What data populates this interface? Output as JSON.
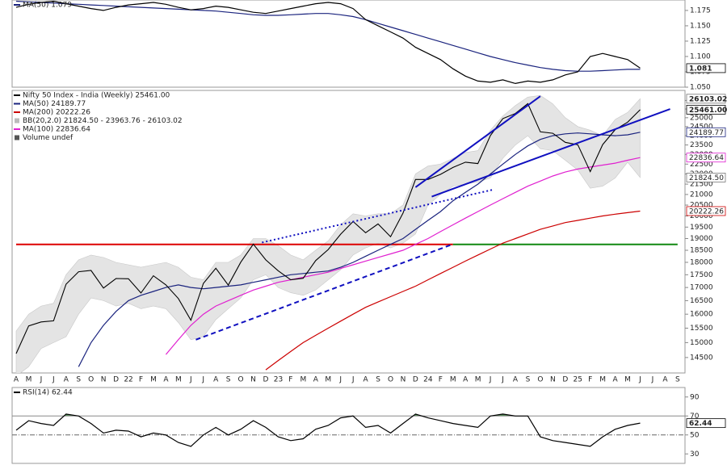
{
  "chart_data": [
    {
      "type": "line",
      "series": [
        {
          "color": "#000000",
          "values": [
            1.18,
            1.185,
            1.188,
            1.19,
            1.186,
            1.182,
            1.178,
            1.175,
            1.18,
            1.184,
            1.186,
            1.188,
            1.185,
            1.18,
            1.176,
            1.178,
            1.182,
            1.18,
            1.176,
            1.172,
            1.17,
            1.174,
            1.178,
            1.182,
            1.186,
            1.188,
            1.186,
            1.178,
            1.16,
            1.15,
            1.14,
            1.13,
            1.115,
            1.105,
            1.095,
            1.08,
            1.068,
            1.06,
            1.058,
            1.062,
            1.056,
            1.06,
            1.058,
            1.062,
            1.07,
            1.075,
            1.1,
            1.105,
            1.1,
            1.095,
            1.081,
            null,
            null,
            null
          ]
        },
        {
          "name": "MA(50) 1.079",
          "color": "#1a237e",
          "values": [
            1.19,
            1.189,
            1.188,
            1.187,
            1.186,
            1.185,
            1.184,
            1.183,
            1.182,
            1.181,
            1.18,
            1.179,
            1.178,
            1.177,
            1.176,
            1.175,
            1.174,
            1.172,
            1.17,
            1.168,
            1.167,
            1.167,
            1.168,
            1.169,
            1.17,
            1.17,
            1.168,
            1.165,
            1.16,
            1.154,
            1.148,
            1.142,
            1.136,
            1.13,
            1.124,
            1.118,
            1.112,
            1.106,
            1.1,
            1.095,
            1.09,
            1.086,
            1.082,
            1.079,
            1.077,
            1.076,
            1.076,
            1.077,
            1.078,
            1.079,
            1.079,
            null,
            null,
            null
          ]
        }
      ],
      "ylim": [
        1.05,
        1.192
      ],
      "yticks": [
        {
          "value": 1.05,
          "label": "1.050"
        },
        {
          "value": 1.075,
          "label": "1.075"
        },
        {
          "value": 1.1,
          "label": "1.100"
        },
        {
          "value": 1.125,
          "label": "1.125"
        },
        {
          "value": 1.15,
          "label": "1.150"
        },
        {
          "value": 1.175,
          "label": "1.175"
        }
      ],
      "tags": [
        {
          "value": 1.081,
          "label": "1.081",
          "color": "#000000"
        }
      ]
    },
    {
      "type": "line",
      "log_scale": true,
      "categories": [
        "A",
        "M",
        "J",
        "J",
        "A",
        "S",
        "O",
        "N",
        "D",
        "22",
        "F",
        "M",
        "A",
        "M",
        "J",
        "J",
        "A",
        "S",
        "O",
        "N",
        "D",
        "23",
        "F",
        "M",
        "A",
        "M",
        "J",
        "J",
        "A",
        "S",
        "O",
        "N",
        "D",
        "24",
        "F",
        "M",
        "A",
        "M",
        "J",
        "J",
        "A",
        "S",
        "O",
        "N",
        "D",
        "25",
        "F",
        "M",
        "A",
        "M",
        "J",
        "J",
        "A",
        "S"
      ],
      "series": [
        {
          "name": "Nifty 50 Index - India (Weekly) 25461.00",
          "color": "#000000",
          "values": [
            14630,
            15580,
            15720,
            15760,
            17130,
            17620,
            17670,
            16980,
            17350,
            17340,
            16790,
            17460,
            17100,
            16580,
            15780,
            17160,
            17760,
            17090,
            18010,
            18760,
            18100,
            17660,
            17300,
            17360,
            18070,
            18530,
            19190,
            19750,
            19250,
            19640,
            19080,
            20130,
            21730,
            21730,
            21980,
            22330,
            22600,
            22530,
            24010,
            24950,
            25240,
            25810,
            24210,
            24130,
            23640,
            23510,
            22120,
            23520,
            24330,
            24750,
            25461,
            null,
            null,
            null
          ]
        },
        {
          "name": "MA(50) 24189.77",
          "color": "#1a237e",
          "values": [
            null,
            null,
            null,
            null,
            null,
            14200,
            15000,
            15600,
            16100,
            16500,
            16700,
            16850,
            17000,
            17100,
            17000,
            16950,
            17000,
            17050,
            17100,
            17200,
            17300,
            17400,
            17500,
            17550,
            17600,
            17650,
            17800,
            18000,
            18250,
            18500,
            18750,
            19000,
            19400,
            19800,
            20200,
            20700,
            21100,
            21500,
            22000,
            22500,
            23000,
            23450,
            23800,
            24000,
            24100,
            24150,
            24100,
            24050,
            24000,
            24050,
            24189.77,
            null,
            null,
            null
          ]
        },
        {
          "name": "MA(200) 20222.26",
          "color": "#cc0000",
          "values": [
            null,
            null,
            null,
            null,
            null,
            null,
            null,
            null,
            null,
            null,
            null,
            null,
            null,
            null,
            null,
            null,
            null,
            null,
            null,
            null,
            14100,
            14400,
            14700,
            15000,
            15250,
            15500,
            15750,
            16000,
            16250,
            16450,
            16650,
            16850,
            17050,
            17300,
            17550,
            17800,
            18050,
            18300,
            18550,
            18800,
            19000,
            19200,
            19400,
            19550,
            19700,
            19800,
            19900,
            20000,
            20080,
            20150,
            20222.26,
            null,
            null,
            null
          ]
        },
        {
          "name": "MA(100) 22836.64",
          "color": "#e020d0",
          "values": [
            null,
            null,
            null,
            null,
            null,
            null,
            null,
            null,
            null,
            null,
            null,
            null,
            14600,
            15100,
            15600,
            16000,
            16300,
            16500,
            16700,
            16900,
            17050,
            17200,
            17300,
            17400,
            17500,
            17600,
            17750,
            17900,
            18050,
            18200,
            18350,
            18500,
            18750,
            19000,
            19300,
            19600,
            19900,
            20200,
            20500,
            20800,
            21100,
            21400,
            21650,
            21900,
            22100,
            22250,
            22350,
            22450,
            22550,
            22700,
            22836.64,
            null,
            null,
            null
          ]
        }
      ],
      "band": {
        "name": "BB(20,2.0) 21824.50 - 23963.76 - 26103.02",
        "color": "#e4e4e4",
        "upper": [
          15400,
          16000,
          16300,
          16400,
          17500,
          18100,
          18300,
          18200,
          18000,
          17900,
          17800,
          17900,
          18000,
          17800,
          17400,
          17300,
          18000,
          18000,
          18300,
          19000,
          19000,
          18700,
          18300,
          18100,
          18500,
          18900,
          19600,
          20100,
          20000,
          20100,
          20100,
          20500,
          22000,
          22400,
          22500,
          22800,
          23100,
          23200,
          24300,
          25100,
          25700,
          26200,
          26300,
          25800,
          25000,
          24500,
          24300,
          24000,
          24900,
          25300,
          26103.02,
          null,
          null,
          null
        ],
        "lower": [
          13900,
          14200,
          14800,
          15000,
          15200,
          16000,
          16600,
          16500,
          16300,
          16400,
          16200,
          16300,
          16200,
          15700,
          15100,
          15200,
          15800,
          16200,
          16600,
          17300,
          17500,
          17000,
          16800,
          16700,
          16900,
          17300,
          17700,
          18300,
          18600,
          18800,
          18600,
          18800,
          19200,
          20500,
          21000,
          21400,
          21500,
          21600,
          21800,
          22800,
          23500,
          24000,
          23300,
          23200,
          22700,
          22200,
          21300,
          21400,
          21800,
          22600,
          21824.5,
          null,
          null,
          null
        ]
      },
      "volume_legend": "Volume undef",
      "hlines": [
        {
          "value": 18750,
          "color": "#dd0000",
          "x": [
            0,
            35
          ]
        },
        {
          "value": 18750,
          "color": "#118811",
          "x": [
            35,
            53
          ]
        }
      ],
      "trendlines": [
        {
          "x": [
            32,
            42
          ],
          "y": [
            21350,
            26250
          ],
          "color": "#1010c0",
          "style": "solid"
        },
        {
          "x": [
            33.3,
            52.4
          ],
          "y": [
            20900,
            25500
          ],
          "color": "#1010c0",
          "style": "solid"
        },
        {
          "x": [
            19.7,
            38.2
          ],
          "y": [
            18830,
            21230
          ],
          "color": "#1010c0",
          "style": "dotted"
        },
        {
          "x": [
            14.4,
            35
          ],
          "y": [
            15100,
            18760
          ],
          "color": "#1010c0",
          "style": "dashed"
        }
      ],
      "ylim": [
        14000,
        26600
      ],
      "yticks": [
        14500,
        15000,
        15500,
        16000,
        16500,
        17000,
        17500,
        18000,
        18500,
        19000,
        19500,
        20000,
        20500,
        21000,
        21500,
        22000,
        22500,
        23000,
        23500,
        24000,
        24500,
        25000,
        25500,
        26000
      ],
      "tags": [
        {
          "value": 26103.02,
          "label": "26103.02",
          "color": "#777777"
        },
        {
          "value": 25461,
          "label": "25461.00",
          "color": "#000000"
        },
        {
          "value": 24189.77,
          "label": "24189.77",
          "color": "#1a237e"
        },
        {
          "value": 22836.64,
          "label": "22836.64",
          "color": "#e020d0"
        },
        {
          "value": 21824.5,
          "label": "21824.50",
          "color": "#777777"
        },
        {
          "value": 20222.26,
          "label": "20222.26",
          "color": "#cc0000"
        }
      ]
    },
    {
      "type": "line",
      "series": [
        {
          "name": "RSI(14) 62.44",
          "color": "#000000",
          "values": [
            55,
            65,
            62,
            60,
            72,
            70,
            62,
            52,
            55,
            54,
            48,
            52,
            50,
            42,
            38,
            50,
            58,
            50,
            56,
            65,
            58,
            48,
            44,
            46,
            56,
            60,
            68,
            70,
            58,
            60,
            52,
            62,
            72,
            68,
            65,
            62,
            60,
            58,
            70,
            72,
            70,
            70,
            48,
            44,
            42,
            40,
            38,
            48,
            56,
            60,
            62.44,
            null,
            null,
            null
          ]
        }
      ],
      "overbought": 70,
      "overbought_color": "#2e7d32",
      "midline": 50,
      "ylim": [
        20,
        100
      ],
      "yticks": [
        30,
        50,
        70,
        90
      ],
      "tags": [
        {
          "value": 62.44,
          "label": "62.44",
          "color": "#000000"
        }
      ]
    }
  ]
}
